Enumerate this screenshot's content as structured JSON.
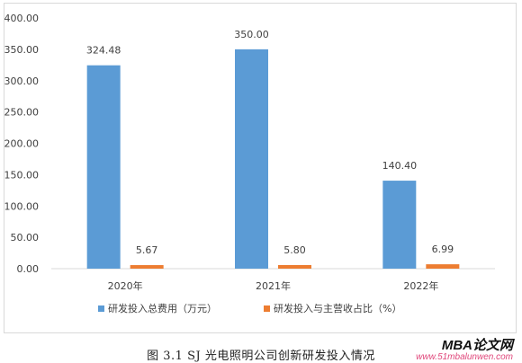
{
  "chart_data": {
    "type": "bar",
    "title": "",
    "xlabel": "",
    "ylabel": "",
    "categories": [
      "2020年",
      "2021年",
      "2022年"
    ],
    "ylim": [
      0,
      400
    ],
    "y_ticks": [
      "0.00",
      "50.00",
      "100.00",
      "150.00",
      "200.00",
      "250.00",
      "300.00",
      "350.00",
      "400.00"
    ],
    "grid": false,
    "legend_position": "bottom",
    "series": [
      {
        "name": "研发投入总费用（万元）",
        "color": "#5b9bd5",
        "values": [
          324.48,
          350.0,
          140.4
        ],
        "labels": [
          "324.48",
          "350.00",
          "140.40"
        ]
      },
      {
        "name": "研发投入与主营收占比（%）",
        "color": "#ed7d31",
        "values": [
          5.67,
          5.8,
          6.99
        ],
        "labels": [
          "5.67",
          "5.80",
          "6.99"
        ]
      }
    ]
  },
  "caption": "图 3.1   SJ 光电照明公司创新研发投入情况",
  "watermark": {
    "logo_text": "MBA论文网",
    "url": "www.51mbalunwen.com"
  }
}
